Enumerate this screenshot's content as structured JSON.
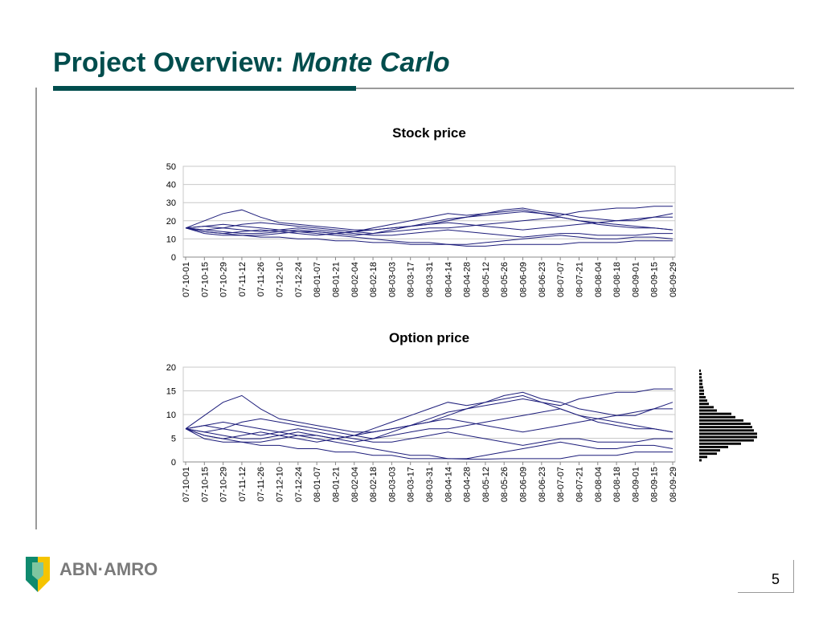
{
  "slide": {
    "title": "Project Overview:",
    "title_emphasis": "Monte Carlo",
    "logo": "ABN·AMRO",
    "page_number": 5
  },
  "chart_data": [
    {
      "type": "line",
      "title": "Stock price",
      "color": "#1c1c7a",
      "grid": true,
      "categories": [
        "07-10-01",
        "07-10-15",
        "07-10-29",
        "07-11-12",
        "07-11-26",
        "07-12-10",
        "07-12-24",
        "08-01-07",
        "08-01-21",
        "08-02-04",
        "08-02-18",
        "08-03-03",
        "08-03-17",
        "08-03-31",
        "08-04-14",
        "08-04-28",
        "08-05-12",
        "08-05-26",
        "08-06-09",
        "08-06-23",
        "08-07-07",
        "08-07-21",
        "08-08-04",
        "08-08-18",
        "08-09-01",
        "08-09-15",
        "08-09-29"
      ],
      "ylim": [
        0,
        50
      ],
      "yticks": [
        0,
        10,
        20,
        30,
        40,
        50
      ],
      "series": [
        {
          "values": [
            16,
            17,
            18,
            17,
            16,
            15,
            14,
            14,
            13,
            14,
            15,
            16,
            17,
            19,
            21,
            22,
            23,
            24,
            25,
            24,
            23,
            25,
            26,
            27,
            27,
            28,
            28
          ]
        },
        {
          "values": [
            16,
            20,
            24,
            26,
            22,
            19,
            18,
            17,
            16,
            15,
            15,
            16,
            17,
            18,
            20,
            22,
            24,
            26,
            27,
            25,
            24,
            22,
            21,
            20,
            20,
            22,
            24
          ]
        },
        {
          "values": [
            16,
            14,
            13,
            14,
            15,
            14,
            13,
            12,
            13,
            14,
            16,
            18,
            20,
            22,
            24,
            23,
            24,
            25,
            26,
            24,
            22,
            20,
            18,
            17,
            16,
            16,
            15
          ]
        },
        {
          "values": [
            16,
            15,
            16,
            18,
            19,
            18,
            17,
            16,
            15,
            14,
            13,
            14,
            15,
            16,
            16,
            17,
            18,
            19,
            20,
            21,
            22,
            20,
            19,
            18,
            17,
            16,
            15
          ]
        },
        {
          "values": [
            16,
            14,
            13,
            12,
            12,
            13,
            14,
            13,
            12,
            11,
            10,
            9,
            8,
            8,
            7,
            7,
            8,
            9,
            10,
            11,
            12,
            11,
            10,
            10,
            11,
            11,
            10
          ]
        },
        {
          "values": [
            16,
            13,
            12,
            12,
            11,
            11,
            10,
            10,
            9,
            9,
            8,
            8,
            7,
            7,
            7,
            6,
            6,
            7,
            7,
            7,
            7,
            8,
            8,
            8,
            9,
            9,
            9
          ]
        },
        {
          "values": [
            16,
            17,
            16,
            15,
            14,
            15,
            16,
            15,
            14,
            13,
            12,
            12,
            13,
            14,
            15,
            14,
            13,
            12,
            11,
            12,
            13,
            13,
            12,
            12,
            12,
            13,
            13
          ]
        },
        {
          "values": [
            16,
            15,
            14,
            13,
            13,
            14,
            15,
            14,
            13,
            12,
            13,
            15,
            17,
            18,
            19,
            18,
            17,
            16,
            15,
            16,
            17,
            18,
            19,
            20,
            21,
            22,
            22
          ]
        }
      ]
    },
    {
      "type": "line",
      "title": "Option price",
      "color": "#1c1c7a",
      "grid": true,
      "categories": [
        "07-10-01",
        "07-10-15",
        "07-10-29",
        "07-11-12",
        "07-11-26",
        "07-12-10",
        "07-12-24",
        "08-01-07",
        "08-01-21",
        "08-02-04",
        "08-02-18",
        "08-03-03",
        "08-03-17",
        "08-03-31",
        "08-04-14",
        "08-04-28",
        "08-05-12",
        "08-05-26",
        "08-06-09",
        "08-06-23",
        "08-07-07",
        "08-07-21",
        "08-08-04",
        "08-08-18",
        "08-09-01",
        "08-09-15",
        "08-09-29"
      ],
      "ylim": [
        0,
        20
      ],
      "yticks": [
        0,
        5,
        10,
        15,
        20
      ],
      "series": [
        {
          "values": [
            7,
            7.7,
            8.4,
            7.7,
            7,
            6.3,
            5.6,
            5.6,
            4.9,
            5.6,
            6.3,
            7,
            7.7,
            9.1,
            10.5,
            11.2,
            11.9,
            12.6,
            13.3,
            12.6,
            11.9,
            13.3,
            14,
            14.7,
            14.7,
            15.4,
            15.4
          ]
        },
        {
          "values": [
            7,
            9.8,
            12.6,
            14,
            11.2,
            9.1,
            8.4,
            7.7,
            7,
            6.3,
            6.3,
            7,
            7.7,
            8.4,
            9.8,
            11.2,
            12.6,
            14,
            14.7,
            13.3,
            12.6,
            11.2,
            10.5,
            9.8,
            9.8,
            11.2,
            12.6
          ]
        },
        {
          "values": [
            7,
            5.6,
            4.9,
            5.6,
            6.3,
            5.6,
            4.9,
            4.2,
            4.9,
            5.6,
            7,
            8.4,
            9.8,
            11.2,
            12.6,
            11.9,
            12.6,
            13.3,
            14,
            12.6,
            11.2,
            9.8,
            8.4,
            7.7,
            7,
            7,
            6.3
          ]
        },
        {
          "values": [
            7,
            6.3,
            7,
            8.4,
            9.1,
            8.4,
            7.7,
            7,
            6.3,
            5.6,
            4.9,
            5.6,
            6.3,
            7,
            7,
            7.7,
            8.4,
            9.1,
            9.8,
            10.5,
            11.2,
            9.8,
            9.1,
            8.4,
            7.7,
            7,
            6.3
          ]
        },
        {
          "values": [
            7,
            5.6,
            4.9,
            4.2,
            4.2,
            4.9,
            5.6,
            4.9,
            4.2,
            3.5,
            2.8,
            2.1,
            1.4,
            1.4,
            0.7,
            0.7,
            1.4,
            2.1,
            2.8,
            3.5,
            4.2,
            3.5,
            2.8,
            2.8,
            3.5,
            3.5,
            2.8
          ]
        },
        {
          "values": [
            7,
            4.9,
            4.2,
            4.2,
            3.5,
            3.5,
            2.8,
            2.8,
            2.1,
            2.1,
            1.4,
            1.4,
            0.7,
            0.7,
            0.7,
            0.6,
            0.6,
            0.7,
            0.7,
            0.7,
            0.7,
            1.4,
            1.4,
            1.4,
            2.1,
            2.1,
            2.1
          ]
        },
        {
          "values": [
            7,
            7.7,
            7,
            6.3,
            5.6,
            6.3,
            7,
            6.3,
            5.6,
            4.9,
            4.2,
            4.2,
            4.9,
            5.6,
            6.3,
            5.6,
            4.9,
            4.2,
            3.5,
            4.2,
            4.9,
            4.9,
            4.2,
            4.2,
            4.2,
            4.9,
            4.9
          ]
        },
        {
          "values": [
            7,
            6.3,
            5.6,
            4.9,
            4.9,
            5.6,
            6.3,
            5.6,
            4.9,
            4.2,
            4.9,
            6.3,
            7.7,
            8.4,
            9.1,
            8.4,
            7.7,
            7,
            6.3,
            7,
            7.7,
            8.4,
            9.1,
            9.8,
            10.5,
            11.2,
            11.2
          ]
        }
      ]
    },
    {
      "type": "histogram",
      "orientation": "horizontal",
      "color": "#000000",
      "ylim": [
        0,
        20
      ],
      "bins": [
        0,
        0.7,
        1.4,
        2.1,
        2.8,
        3.5,
        4.2,
        4.9,
        5.6,
        6.3,
        7,
        7.7,
        8.4,
        9.1,
        9.8,
        10.5,
        11.2,
        11.9,
        12.6,
        13.3,
        14,
        14.7,
        15.4,
        16.1,
        16.8,
        17.5,
        18.2,
        18.9,
        19.6
      ],
      "counts": [
        3,
        10,
        22,
        26,
        36,
        52,
        68,
        72,
        72,
        68,
        66,
        64,
        55,
        45,
        40,
        22,
        18,
        12,
        10,
        8,
        6,
        6,
        5,
        4,
        4,
        3,
        3,
        2
      ]
    }
  ]
}
